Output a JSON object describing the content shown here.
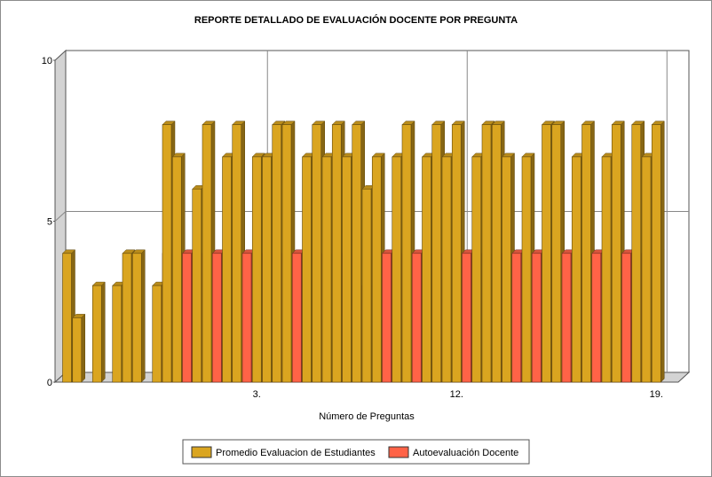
{
  "chart_data": {
    "type": "bar",
    "title": "REPORTE DETALLADO DE EVALUACIÓN DOCENTE POR PREGUNTA",
    "xlabel": "Número de Preguntas",
    "ylabel": "",
    "ylim": [
      0,
      10
    ],
    "yticks": [
      "0",
      "5",
      "10"
    ],
    "x_tick_labels": [
      {
        "label": "3.",
        "index": 19
      },
      {
        "label": "12.",
        "index": 39
      },
      {
        "label": "19.",
        "index": 59
      }
    ],
    "grid": true,
    "legend_position": "bottom",
    "series": [
      {
        "name": "Promedio Evaluacion de Estudiantes",
        "color": "#DAA520",
        "values": [
          4,
          2,
          0,
          3,
          0,
          3,
          4,
          4,
          0,
          3,
          8,
          7,
          0,
          6,
          8,
          0,
          7,
          8,
          0,
          7,
          7,
          8,
          8,
          0,
          7,
          8,
          7,
          8,
          7,
          8,
          6,
          7,
          0,
          7,
          8,
          0,
          7,
          8,
          7,
          8,
          0,
          7,
          8,
          8,
          7,
          0,
          7,
          0,
          8,
          8,
          0,
          7,
          8,
          0,
          7,
          8,
          0,
          8,
          7,
          8
        ]
      },
      {
        "name": "Autoevaluación Docente",
        "color": "#FF6347",
        "values": [
          0,
          0,
          0,
          0,
          0,
          0,
          0,
          0,
          0,
          0,
          4,
          4,
          4,
          4,
          4,
          4,
          4,
          4,
          4,
          4,
          4,
          4,
          4,
          4,
          4,
          4,
          4,
          4,
          4,
          4,
          3,
          3,
          4,
          4,
          4,
          4,
          4,
          4,
          4,
          4,
          4,
          4,
          4,
          4,
          4,
          4,
          4,
          4,
          4,
          4,
          4,
          4,
          4,
          4,
          4,
          4,
          4,
          4,
          4,
          4
        ]
      }
    ]
  }
}
